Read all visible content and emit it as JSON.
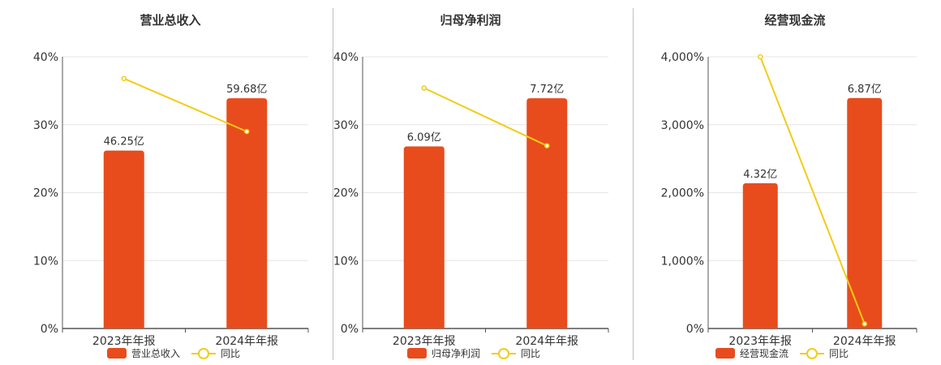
{
  "colors": {
    "bar": "#e84c1c",
    "line": "#f2cc17",
    "grid": "#e6e6e6",
    "axis": "#555555",
    "text": "#333333"
  },
  "chart_data": [
    {
      "type": "bar",
      "title": "营业总收入",
      "categories": [
        "2023年年报",
        "2024年年报"
      ],
      "series": [
        {
          "name": "营业总收入",
          "type": "bar",
          "axis_values_percent": [
            26.2,
            33.9
          ],
          "labels": [
            "46.25亿",
            "59.68亿"
          ]
        },
        {
          "name": "同比",
          "type": "line",
          "values_percent": [
            36.8,
            29.0
          ]
        }
      ],
      "yticks": [
        "0%",
        "10%",
        "20%",
        "30%",
        "40%"
      ],
      "ylim": [
        0,
        40
      ],
      "legend_position": "bottom"
    },
    {
      "type": "bar",
      "title": "归母净利润",
      "categories": [
        "2023年年报",
        "2024年年报"
      ],
      "series": [
        {
          "name": "归母净利润",
          "type": "bar",
          "axis_values_percent": [
            26.8,
            33.9
          ],
          "labels": [
            "6.09亿",
            "7.72亿"
          ]
        },
        {
          "name": "同比",
          "type": "line",
          "values_percent": [
            35.4,
            26.9
          ]
        }
      ],
      "yticks": [
        "0%",
        "10%",
        "20%",
        "30%",
        "40%"
      ],
      "ylim": [
        0,
        40
      ],
      "legend_position": "bottom"
    },
    {
      "type": "bar",
      "title": "经营现金流",
      "categories": [
        "2023年年报",
        "2024年年报"
      ],
      "series": [
        {
          "name": "经营现金流",
          "type": "bar",
          "axis_values_percent": [
            2200,
            3490
          ],
          "labels": [
            "4.32亿",
            "6.87亿"
          ]
        },
        {
          "name": "同比",
          "type": "line",
          "values_percent": [
            4115,
            70
          ]
        }
      ],
      "yticks": [
        "0%",
        "1,000%",
        "2,000%",
        "3,000%",
        "4,000%"
      ],
      "ylim": [
        0,
        4115
      ],
      "legend_position": "bottom"
    }
  ]
}
